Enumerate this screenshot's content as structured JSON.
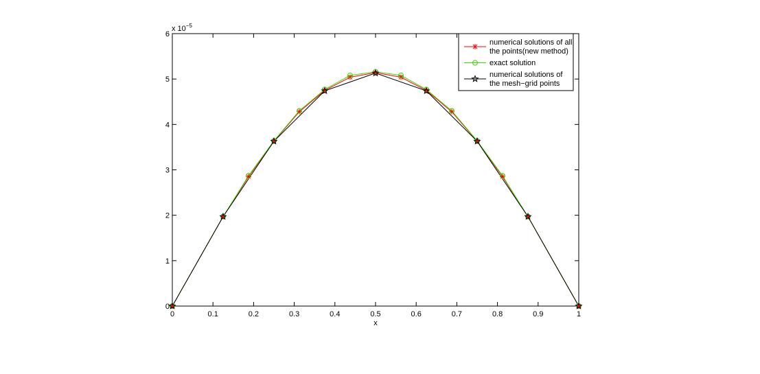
{
  "chart_data": {
    "type": "line",
    "xlabel": "x",
    "y_multiplier": {
      "base": "x 10",
      "exponent": "−5"
    },
    "xlim": [
      0,
      1
    ],
    "xticks": [
      0,
      0.1,
      0.2,
      0.3,
      0.4,
      0.5,
      0.6,
      0.7,
      0.8,
      0.9,
      1
    ],
    "ylim": [
      0,
      6
    ],
    "yticks": [
      0,
      1,
      2,
      3,
      4,
      5,
      6
    ],
    "grid": false,
    "legend_position": "upper-right",
    "series": [
      {
        "name": [
          "numerical solutions of all",
          "the points(new method)"
        ],
        "color": "#ff0000",
        "marker": "asterisk",
        "x": [
          0,
          0.125,
          0.1875,
          0.25,
          0.3125,
          0.375,
          0.4375,
          0.5,
          0.5625,
          0.625,
          0.6875,
          0.75,
          0.8125,
          0.875,
          1
        ],
        "values": [
          0,
          1.97,
          2.85,
          3.63,
          4.28,
          4.75,
          5.04,
          5.14,
          5.04,
          4.75,
          4.28,
          3.63,
          2.85,
          1.97,
          0
        ]
      },
      {
        "name": [
          "exact solution"
        ],
        "color": "#33dd00",
        "marker": "circle",
        "x": [
          0,
          0.125,
          0.1875,
          0.25,
          0.3125,
          0.375,
          0.4375,
          0.5,
          0.5625,
          0.625,
          0.6875,
          0.75,
          0.8125,
          0.875,
          1
        ],
        "values": [
          0,
          1.97,
          2.87,
          3.64,
          4.3,
          4.77,
          5.08,
          5.16,
          5.08,
          4.77,
          4.3,
          3.64,
          2.87,
          1.97,
          0
        ]
      },
      {
        "name": [
          "numerical solutions of",
          "the mesh−grid points"
        ],
        "color": "#000000",
        "marker": "star",
        "x": [
          0,
          0.125,
          0.25,
          0.375,
          0.5,
          0.625,
          0.75,
          0.875,
          1
        ],
        "values": [
          0,
          1.97,
          3.63,
          4.74,
          5.13,
          4.74,
          3.63,
          1.97,
          0
        ]
      }
    ]
  }
}
